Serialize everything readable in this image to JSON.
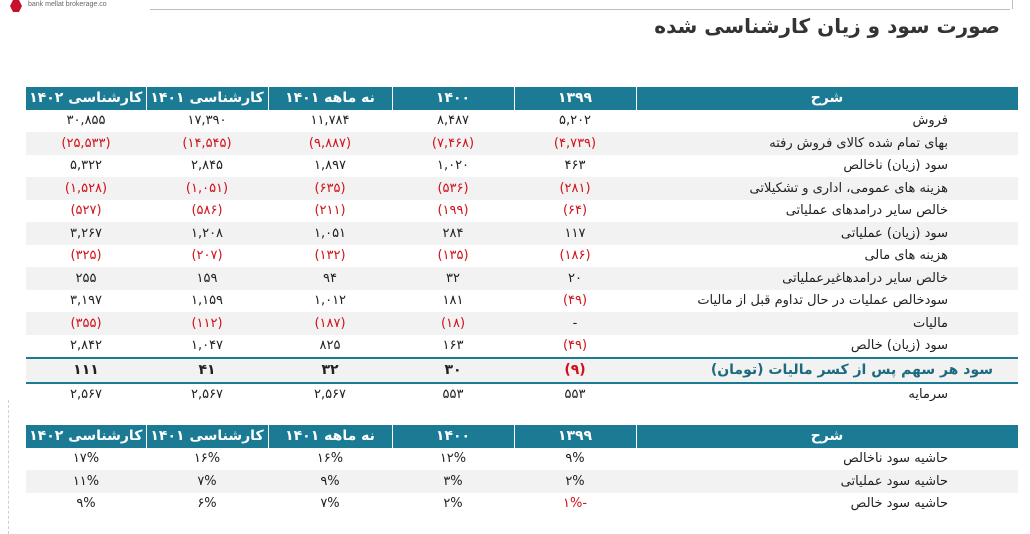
{
  "logo_text": "bank mellat brokerage.co",
  "title": "صورت سود و زیان کارشناسی شده",
  "colors": {
    "header": "#1b7a94",
    "negative": "#d0121b",
    "stripe": "#f2f2f2"
  },
  "headers": [
    "کارشناسی ۱۴۰۲",
    "کارشناسی ۱۴۰۱",
    "نه ماهه ۱۴۰۱",
    "۱۴۰۰",
    "۱۳۹۹",
    "شرح"
  ],
  "rows": [
    {
      "label": "فروش",
      "values": [
        "۳۰,۸۵۵",
        "۱۷,۳۹۰",
        "۱۱,۷۸۴",
        "۸,۴۸۷",
        "۵,۲۰۲"
      ],
      "neg": [
        false,
        false,
        false,
        false,
        false
      ]
    },
    {
      "label": "بهای تمام شده کالای فروش رفته",
      "values": [
        "(۲۵,۵۳۳)",
        "(۱۴,۵۴۵)",
        "(۹,۸۸۷)",
        "(۷,۴۶۸)",
        "(۴,۷۳۹)"
      ],
      "neg": [
        true,
        true,
        true,
        true,
        true
      ]
    },
    {
      "label": "سود (زیان) ناخالص",
      "values": [
        "۵,۳۲۲",
        "۲,۸۴۵",
        "۱,۸۹۷",
        "۱,۰۲۰",
        "۴۶۳"
      ],
      "neg": [
        false,
        false,
        false,
        false,
        false
      ]
    },
    {
      "label": "هزینه های عمومی، اداری و تشکیلاتی",
      "values": [
        "(۱,۵۲۸)",
        "(۱,۰۵۱)",
        "(۶۳۵)",
        "(۵۳۶)",
        "(۲۸۱)"
      ],
      "neg": [
        true,
        true,
        true,
        true,
        true
      ]
    },
    {
      "label": "خالص سایر درامدهای  عملیاتی",
      "values": [
        "(۵۲۷)",
        "(۵۸۶)",
        "(۲۱۱)",
        "(۱۹۹)",
        "(۶۴)"
      ],
      "neg": [
        true,
        true,
        true,
        true,
        true
      ]
    },
    {
      "label": "سود (زیان) عملیاتی",
      "values": [
        "۳,۲۶۷",
        "۱,۲۰۸",
        "۱,۰۵۱",
        "۲۸۴",
        "۱۱۷"
      ],
      "neg": [
        false,
        false,
        false,
        false,
        false
      ]
    },
    {
      "label": "هزینه های مالی",
      "values": [
        "(۳۲۵)",
        "(۲۰۷)",
        "(۱۳۲)",
        "(۱۳۵)",
        "(۱۸۶)"
      ],
      "neg": [
        true,
        true,
        true,
        true,
        true
      ]
    },
    {
      "label": "خالص سایر درامدهاغیرعملیاتی",
      "values": [
        "۲۵۵",
        "۱۵۹",
        "۹۴",
        "۳۲",
        "۲۰"
      ],
      "neg": [
        false,
        false,
        false,
        false,
        false
      ]
    },
    {
      "label": "سودخالص عملیات در حال تداوم قبل از مالیات",
      "values": [
        "۳,۱۹۷",
        "۱,۱۵۹",
        "۱,۰۱۲",
        "۱۸۱",
        "(۴۹)"
      ],
      "neg": [
        false,
        false,
        false,
        false,
        true
      ]
    },
    {
      "label": "مالیات",
      "values": [
        "(۳۵۵)",
        "(۱۱۲)",
        "(۱۸۷)",
        "(۱۸)",
        "-"
      ],
      "neg": [
        true,
        true,
        true,
        true,
        false
      ]
    },
    {
      "label": "سود (زیان) خالص",
      "values": [
        "۲,۸۴۲",
        "۱,۰۴۷",
        "۸۲۵",
        "۱۶۳",
        "(۴۹)"
      ],
      "neg": [
        false,
        false,
        false,
        false,
        true
      ]
    },
    {
      "label": "سود هر سهم پس از کسر مالیات (تومان)",
      "values": [
        "۱۱۱",
        "۴۱",
        "۳۲",
        "۳۰",
        "(۹)"
      ],
      "neg": [
        false,
        false,
        false,
        false,
        true
      ],
      "bold": true
    },
    {
      "label": "سرمایه",
      "values": [
        "۲,۵۶۷",
        "۲,۵۶۷",
        "۲,۵۶۷",
        "۵۵۳",
        "۵۵۳"
      ],
      "neg": [
        false,
        false,
        false,
        false,
        false
      ]
    }
  ],
  "margin_rows": [
    {
      "label": "حاشیه سود ناخالص",
      "values": [
        "۱۷%",
        "۱۶%",
        "۱۶%",
        "۱۲%",
        "۹%"
      ],
      "neg": [
        false,
        false,
        false,
        false,
        false
      ]
    },
    {
      "label": "حاشیه سود عملیاتی",
      "values": [
        "۱۱%",
        "۷%",
        "۹%",
        "۳%",
        "۲%"
      ],
      "neg": [
        false,
        false,
        false,
        false,
        false
      ]
    },
    {
      "label": "حاشیه سود خالص",
      "values": [
        "۹%",
        "۶%",
        "۷%",
        "۲%",
        "-۱%"
      ],
      "neg": [
        false,
        false,
        false,
        false,
        true
      ]
    }
  ]
}
